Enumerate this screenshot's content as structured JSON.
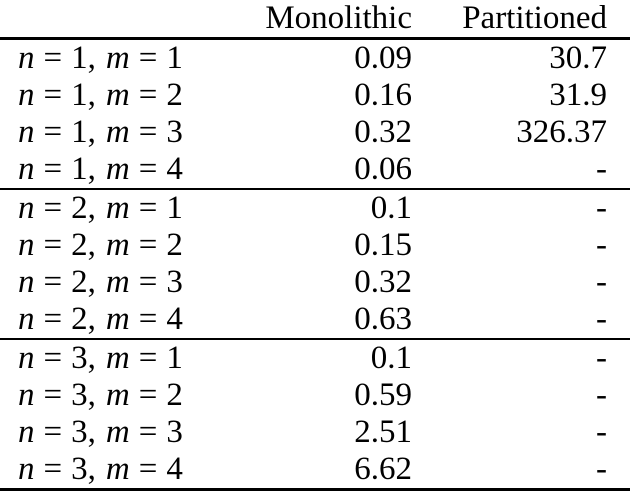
{
  "table": {
    "columns": [
      "",
      "Monolithic",
      "Partitioned"
    ],
    "symbols": {
      "var_n": "n",
      "var_m": "m",
      "equals": "=",
      "comma": ",",
      "missing": "-"
    },
    "groups": [
      {
        "rows": [
          {
            "n": "1",
            "m": "1",
            "monolithic": "0.09",
            "partitioned": "30.7"
          },
          {
            "n": "1",
            "m": "2",
            "monolithic": "0.16",
            "partitioned": "31.9"
          },
          {
            "n": "1",
            "m": "3",
            "monolithic": "0.32",
            "partitioned": "326.37"
          },
          {
            "n": "1",
            "m": "4",
            "monolithic": "0.06",
            "partitioned": "-"
          }
        ]
      },
      {
        "rows": [
          {
            "n": "2",
            "m": "1",
            "monolithic": "0.1",
            "partitioned": "-"
          },
          {
            "n": "2",
            "m": "2",
            "monolithic": "0.15",
            "partitioned": "-"
          },
          {
            "n": "2",
            "m": "3",
            "monolithic": "0.32",
            "partitioned": "-"
          },
          {
            "n": "2",
            "m": "4",
            "monolithic": "0.63",
            "partitioned": "-"
          }
        ]
      },
      {
        "rows": [
          {
            "n": "3",
            "m": "1",
            "monolithic": "0.1",
            "partitioned": "-"
          },
          {
            "n": "3",
            "m": "2",
            "monolithic": "0.59",
            "partitioned": "-"
          },
          {
            "n": "3",
            "m": "3",
            "monolithic": "2.51",
            "partitioned": "-"
          },
          {
            "n": "3",
            "m": "4",
            "monolithic": "6.62",
            "partitioned": "-"
          }
        ]
      }
    ]
  },
  "colors": {
    "text": "#000000",
    "background": "#ffffff",
    "rule": "#000000"
  }
}
